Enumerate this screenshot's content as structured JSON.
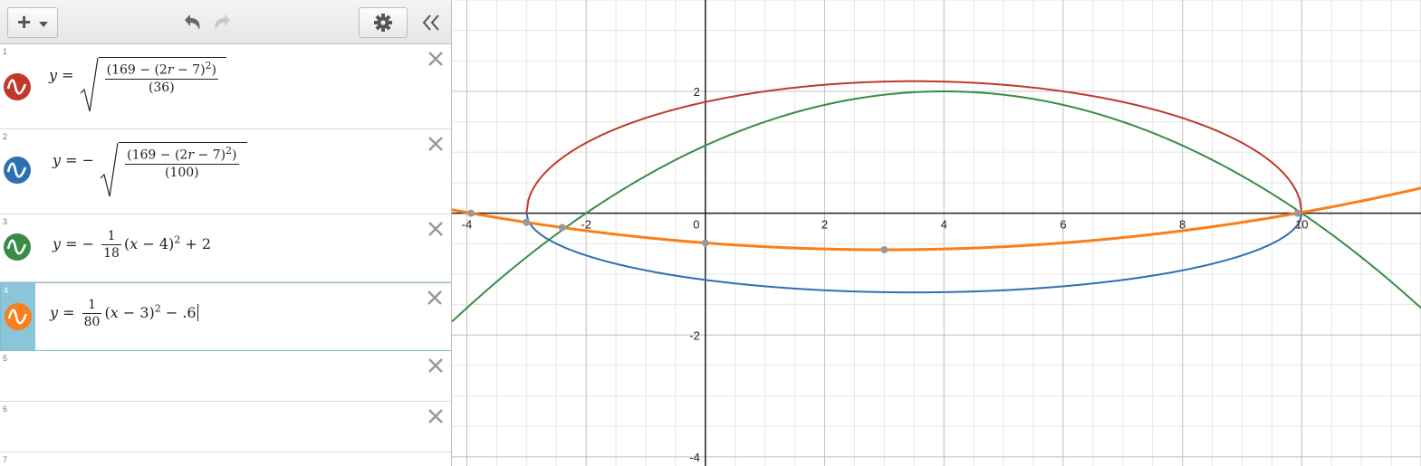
{
  "toolbar": {
    "add_label": "+",
    "add_icon": "plus-dropdown-icon",
    "undo_icon": "undo-icon",
    "redo_icon": "redo-icon",
    "settings_icon": "gear-icon",
    "collapse_icon": "double-chevron-left-icon"
  },
  "expressions": [
    {
      "num": "1",
      "color": "#c0392b",
      "icon": "wave-icon",
      "y": "y",
      "eq": "=",
      "minus": "",
      "numer_a": "(169 − (2",
      "numer_r": "r",
      "numer_b": " − 7)",
      "numer_exp": "2",
      "numer_c": ")",
      "denom": "(36)"
    },
    {
      "num": "2",
      "color": "#2d70b3",
      "icon": "wave-icon",
      "y": "y",
      "eq": "=",
      "minus": "−",
      "numer_a": "(169 − (2",
      "numer_r": "r",
      "numer_b": " − 7)",
      "numer_exp": "2",
      "numer_c": ")",
      "denom": "(100)"
    },
    {
      "num": "3",
      "color": "#388c46",
      "icon": "wave-icon",
      "y": "y",
      "eq": "=",
      "minus": "−",
      "frac_n": "1",
      "frac_d": "18",
      "x": "x",
      "body": " − 4)",
      "exp": "2",
      "tail": " + 2"
    },
    {
      "num": "4",
      "color": "#fa7e19",
      "icon": "wave-icon",
      "y": "y",
      "eq": "=",
      "frac_n": "1",
      "frac_d": "80",
      "x": "x",
      "body": " − 3)",
      "exp": "2",
      "tail": " − .6"
    },
    {
      "num": "5"
    },
    {
      "num": "6"
    },
    {
      "num": "7"
    }
  ],
  "graph": {
    "x_ticks": [
      "-4",
      "-2",
      "0",
      "2",
      "4",
      "6",
      "8",
      "10"
    ],
    "y_ticks": [
      "2",
      "-2",
      "-4"
    ],
    "xlim": [
      -4.25,
      12
    ],
    "ylim": [
      -4.15,
      3.5
    ],
    "colors": {
      "red": "#c0392b",
      "blue": "#2d70b3",
      "green": "#388c46",
      "orange": "#fa7e19"
    }
  }
}
